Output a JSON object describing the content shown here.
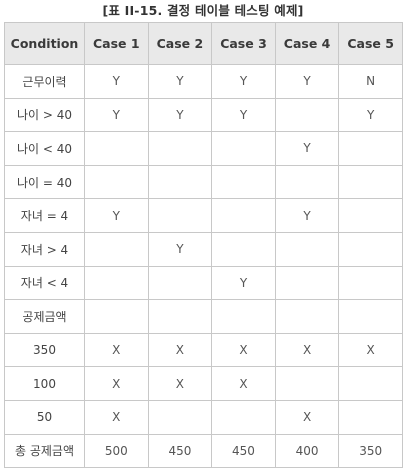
{
  "caption": "[표 II-15. 결정 테이블 테스팅 예제]",
  "table": {
    "headers": [
      "Condition",
      "Case 1",
      "Case 2",
      "Case 3",
      "Case 4",
      "Case 5"
    ],
    "rows": [
      {
        "label": "근무이력",
        "cells": [
          "Y",
          "Y",
          "Y",
          "Y",
          "N"
        ]
      },
      {
        "label": "나이 > 40",
        "cells": [
          "Y",
          "Y",
          "Y",
          "",
          "Y"
        ]
      },
      {
        "label": "나이 < 40",
        "cells": [
          "",
          "",
          "",
          "Y",
          ""
        ]
      },
      {
        "label": "나이 = 40",
        "cells": [
          "",
          "",
          "",
          "",
          ""
        ]
      },
      {
        "label": "자녀 = 4",
        "cells": [
          "Y",
          "",
          "",
          "Y",
          ""
        ]
      },
      {
        "label": "자녀 > 4",
        "cells": [
          "",
          "Y",
          "",
          "",
          ""
        ]
      },
      {
        "label": "자녀 < 4",
        "cells": [
          "",
          "",
          "Y",
          "",
          ""
        ]
      },
      {
        "label": "공제금액",
        "cells": [
          "",
          "",
          "",
          "",
          ""
        ]
      },
      {
        "label": "350",
        "cells": [
          "X",
          "X",
          "X",
          "X",
          "X"
        ]
      },
      {
        "label": "100",
        "cells": [
          "X",
          "X",
          "X",
          "",
          ""
        ]
      },
      {
        "label": "50",
        "cells": [
          "X",
          "",
          "",
          "X",
          ""
        ]
      },
      {
        "label": "총 공제금액",
        "cells": [
          "500",
          "450",
          "450",
          "400",
          "350"
        ]
      }
    ]
  }
}
